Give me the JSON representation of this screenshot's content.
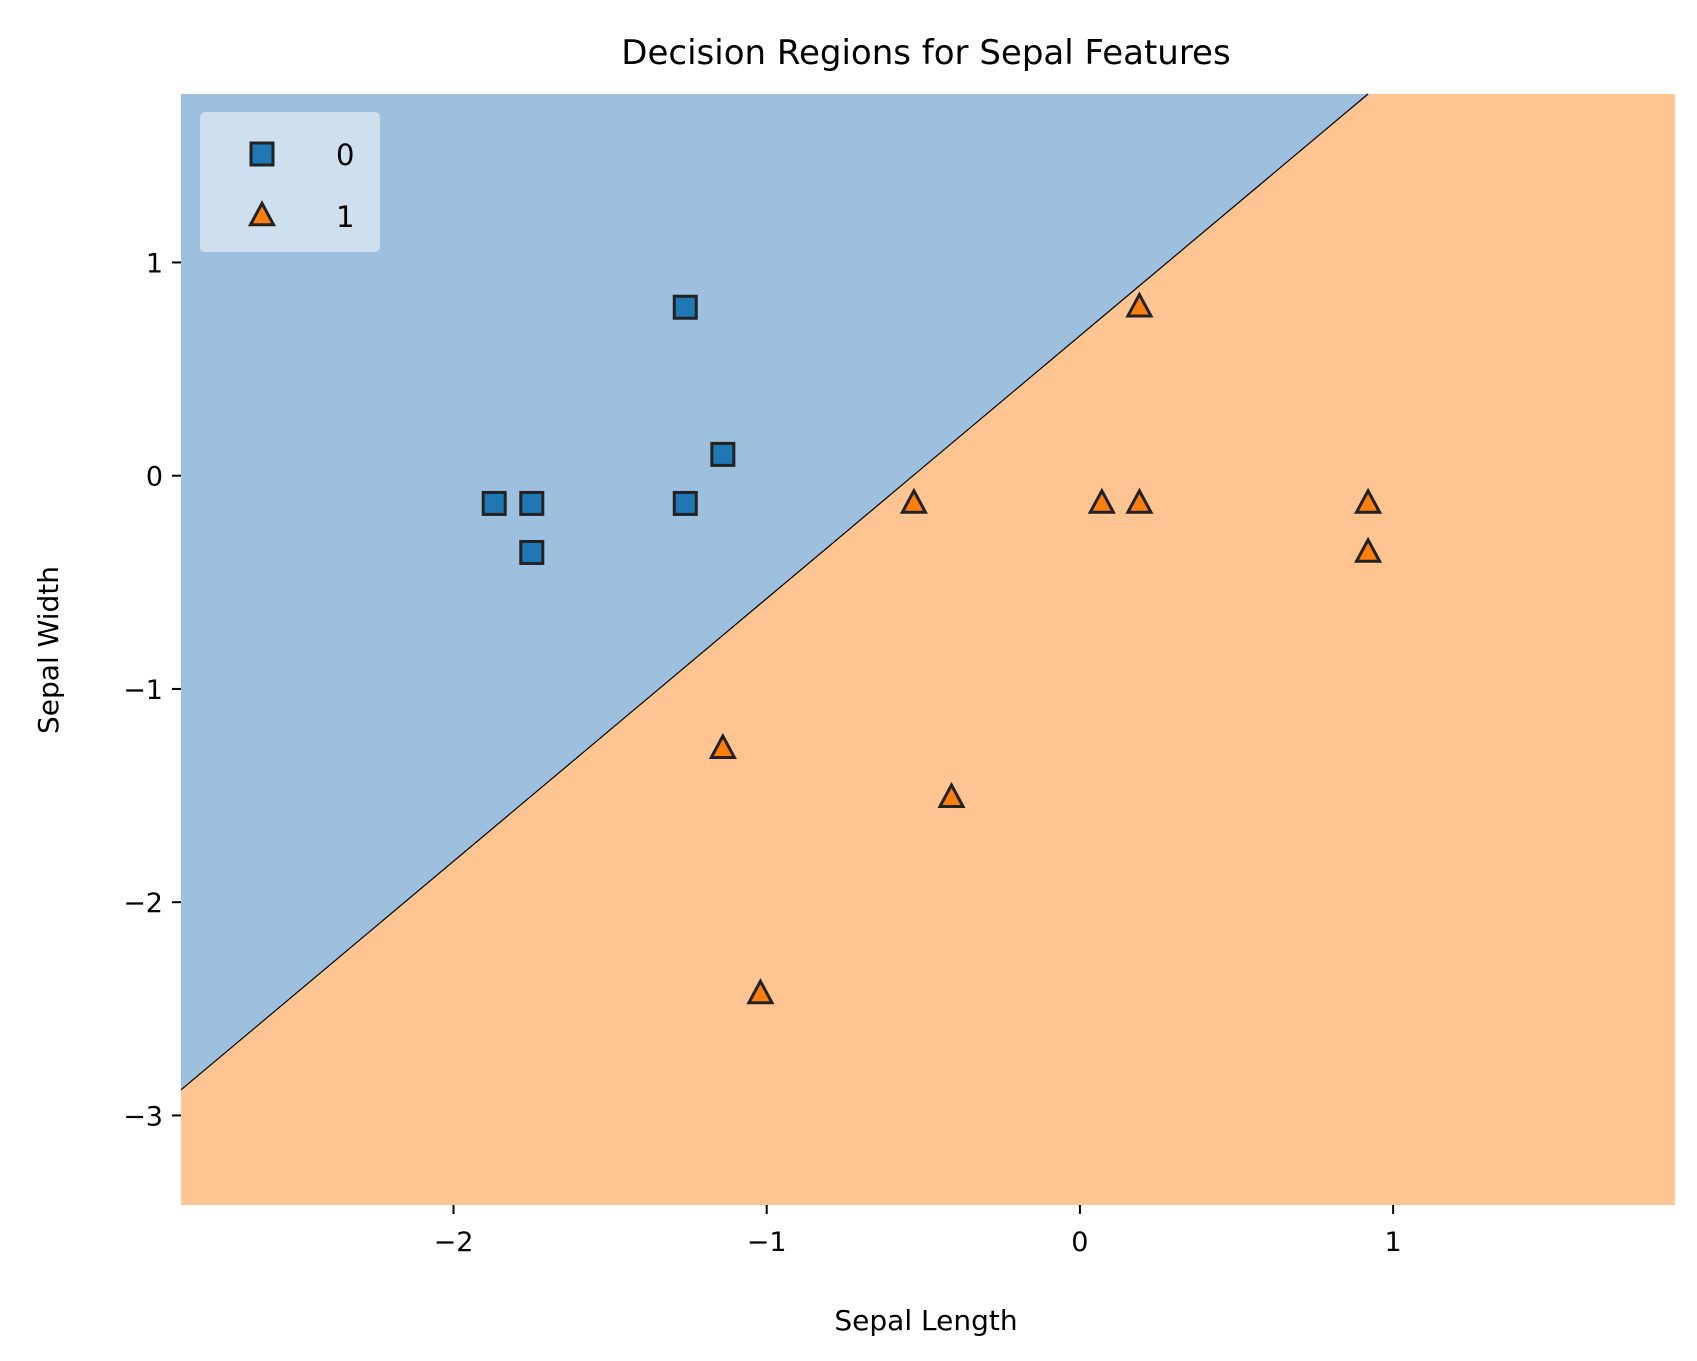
{
  "chart_data": {
    "type": "scatter",
    "title": "Decision Regions for Sepal Features",
    "xlabel": "Sepal Length",
    "ylabel": "Sepal Width",
    "xlim": [
      -2.87,
      1.9
    ],
    "ylim": [
      -3.42,
      1.79
    ],
    "xticks": [
      -2,
      -1,
      0,
      1
    ],
    "yticks": [
      -3,
      -2,
      -1,
      0,
      1
    ],
    "legend_position": "top-left",
    "grid": false,
    "decision_boundary": {
      "points": [
        [
          -2.87,
          -2.88
        ],
        [
          0.92,
          1.79
        ]
      ],
      "region_colors": {
        "upper_left": "#9cc0dd",
        "lower_right": "#fec492"
      }
    },
    "series": [
      {
        "name": "0",
        "marker": "square",
        "color": "#1f77b4",
        "points": [
          [
            -1.87,
            -0.13
          ],
          [
            -1.75,
            -0.13
          ],
          [
            -1.75,
            -0.36
          ],
          [
            -1.26,
            0.79
          ],
          [
            -1.14,
            0.1
          ],
          [
            -1.26,
            -0.13
          ]
        ]
      },
      {
        "name": "1",
        "marker": "triangle",
        "color": "#ff7f0e",
        "points": [
          [
            0.19,
            0.79
          ],
          [
            -0.53,
            -0.13
          ],
          [
            0.07,
            -0.13
          ],
          [
            0.19,
            -0.13
          ],
          [
            0.92,
            -0.13
          ],
          [
            0.92,
            -0.36
          ],
          [
            -1.14,
            -1.28
          ],
          [
            -0.41,
            -1.51
          ],
          [
            -1.02,
            -2.43
          ]
        ]
      }
    ]
  }
}
